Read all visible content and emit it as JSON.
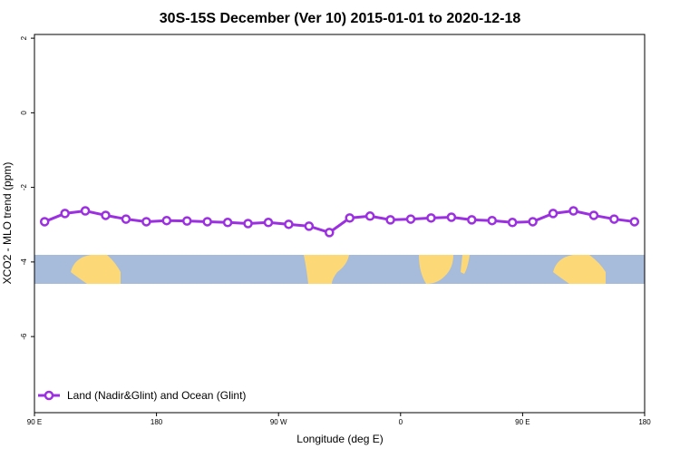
{
  "chart_data": {
    "type": "line",
    "title": "30S-15S December (Ver 10)   2015-01-01 to 2020-12-18",
    "x_label": "Longitude (deg E)",
    "y_label": "XCO2 - MLO trend (ppm)",
    "x": [
      97.5,
      112.5,
      127.5,
      142.5,
      157.5,
      172.5,
      187.5,
      202.5,
      217.5,
      232.5,
      247.5,
      262.5,
      277.5,
      292.5,
      307.5,
      322.5,
      337.5,
      352.5,
      367.5,
      382.5,
      397.5,
      412.5,
      427.5,
      442.5,
      457.5,
      472.5,
      487.5,
      502.5,
      517.5,
      532.5
    ],
    "series": [
      {
        "name": "Land (Nadir&Glint) and Ocean (Glint)",
        "color": "#9b30e0",
        "values": [
          -2.92,
          -2.7,
          -2.63,
          -2.75,
          -2.85,
          -2.92,
          -2.89,
          -2.9,
          -2.92,
          -2.94,
          -2.97,
          -2.94,
          -2.99,
          -3.04,
          -3.21,
          -2.82,
          -2.77,
          -2.87,
          -2.85,
          -2.82,
          -2.8,
          -2.87,
          -2.89,
          -2.94,
          -2.92,
          -2.7,
          -2.63,
          -2.75,
          -2.85,
          -2.92
        ]
      }
    ],
    "xlim": [
      90,
      540
    ],
    "xticks": [
      {
        "value": 90,
        "label": "90 E"
      },
      180,
      {
        "value": 270,
        "label": "90 W"
      },
      {
        "value": 360,
        "label": "0"
      },
      {
        "value": 450,
        "label": "90 E"
      },
      {
        "value": 540,
        "label": "180"
      }
    ],
    "ylim": [
      -8.04,
      2.1
    ],
    "yticks": [
      2,
      0,
      -2,
      -4,
      -6
    ],
    "legend": "bottom-left"
  }
}
